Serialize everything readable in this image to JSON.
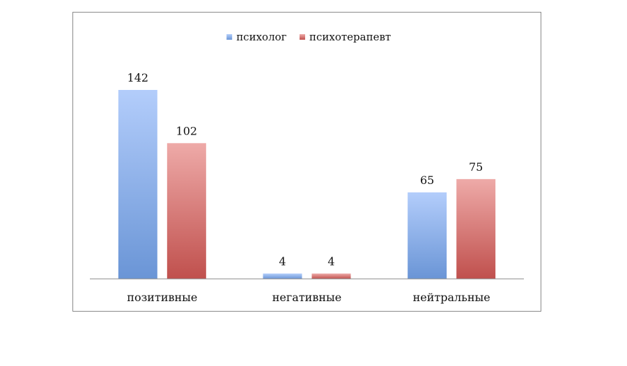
{
  "chart_data": {
    "type": "bar",
    "categories": [
      "позитивные",
      "негативные",
      "нейтральные"
    ],
    "series": [
      {
        "name": "психолог",
        "values": [
          142,
          4,
          65
        ],
        "color_top": "#b3cdfb",
        "color_bottom": "#6a95d6"
      },
      {
        "name": "психотерапевт",
        "values": [
          102,
          4,
          75
        ],
        "color_top": "#eeaaa8",
        "color_bottom": "#c0504d"
      }
    ],
    "title": "",
    "xlabel": "",
    "ylabel": "",
    "ylim": [
      0,
      142
    ],
    "grid": false,
    "legend_position": "top-center",
    "data_labels": true
  }
}
